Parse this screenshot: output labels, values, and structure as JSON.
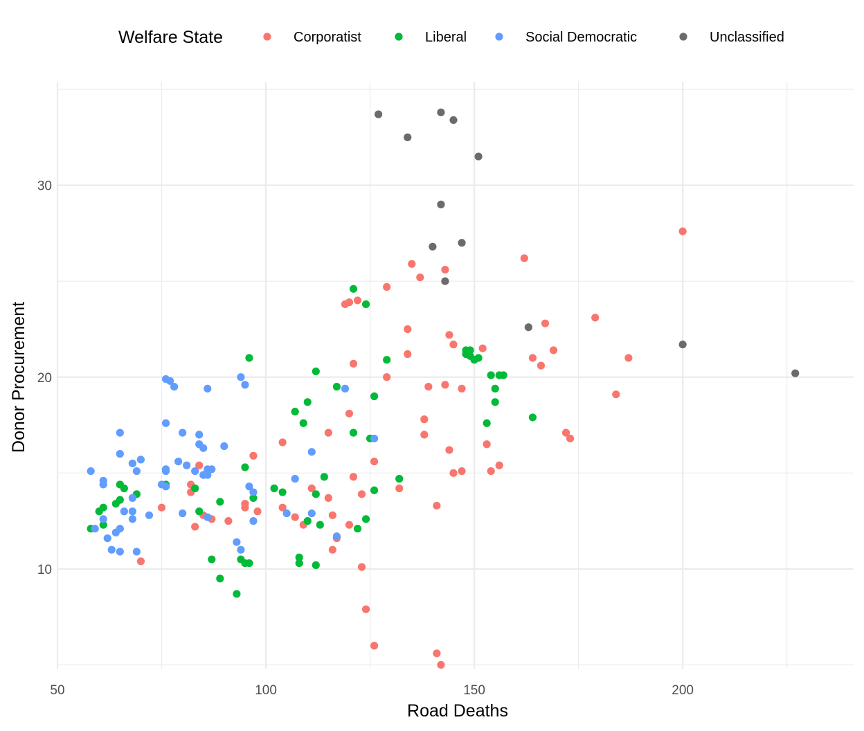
{
  "chart_data": {
    "type": "scatter",
    "title": "",
    "xlabel": "Road Deaths",
    "ylabel": "Donor Procurement",
    "xlim": [
      50,
      241
    ],
    "ylim": [
      4.8,
      35.4
    ],
    "x_ticks": [
      50,
      100,
      150,
      200
    ],
    "y_ticks": [
      10,
      20,
      30
    ],
    "grid": true,
    "legend": {
      "title": "Welfare State",
      "placement": "top"
    },
    "series": [
      {
        "name": "Corporatist",
        "color": "#F8766D",
        "points": [
          [
            200,
            27.6
          ],
          [
            162,
            26.2
          ],
          [
            135,
            25.9
          ],
          [
            143,
            25.6
          ],
          [
            137,
            25.2
          ],
          [
            129,
            24.7
          ],
          [
            122,
            24.0
          ],
          [
            120,
            23.9
          ],
          [
            119,
            23.8
          ],
          [
            179,
            23.1
          ],
          [
            167,
            22.8
          ],
          [
            134,
            22.5
          ],
          [
            144,
            22.2
          ],
          [
            145,
            21.7
          ],
          [
            152,
            21.5
          ],
          [
            169,
            21.4
          ],
          [
            134,
            21.2
          ],
          [
            164,
            21.0
          ],
          [
            187,
            21.0
          ],
          [
            121,
            20.7
          ],
          [
            166,
            20.6
          ],
          [
            129,
            20.0
          ],
          [
            143,
            19.6
          ],
          [
            139,
            19.5
          ],
          [
            147,
            19.4
          ],
          [
            184,
            19.1
          ],
          [
            120,
            18.1
          ],
          [
            138,
            17.8
          ],
          [
            115,
            17.1
          ],
          [
            172,
            17.1
          ],
          [
            138,
            17.0
          ],
          [
            173,
            16.8
          ],
          [
            104,
            16.6
          ],
          [
            153,
            16.5
          ],
          [
            144,
            16.2
          ],
          [
            97,
            15.9
          ],
          [
            126,
            15.6
          ],
          [
            156,
            15.4
          ],
          [
            84,
            15.4
          ],
          [
            145,
            15.0
          ],
          [
            147,
            15.1
          ],
          [
            154,
            15.1
          ],
          [
            121,
            14.8
          ],
          [
            82,
            14.4
          ],
          [
            111,
            14.2
          ],
          [
            132,
            14.2
          ],
          [
            82,
            14.0
          ],
          [
            123,
            13.9
          ],
          [
            115,
            13.7
          ],
          [
            95,
            13.4
          ],
          [
            141,
            13.3
          ],
          [
            75,
            13.2
          ],
          [
            95,
            13.2
          ],
          [
            104,
            13.2
          ],
          [
            98,
            13.0
          ],
          [
            85,
            12.8
          ],
          [
            116,
            12.8
          ],
          [
            107,
            12.7
          ],
          [
            87,
            12.6
          ],
          [
            91,
            12.5
          ],
          [
            120,
            12.3
          ],
          [
            109,
            12.3
          ],
          [
            83,
            12.2
          ],
          [
            117,
            11.6
          ],
          [
            116,
            11.0
          ],
          [
            70,
            10.4
          ],
          [
            123,
            10.1
          ],
          [
            124,
            7.9
          ],
          [
            126,
            6.0
          ],
          [
            141,
            5.6
          ],
          [
            142,
            5.0
          ]
        ]
      },
      {
        "name": "Liberal",
        "color": "#00BA38",
        "points": [
          [
            121,
            24.6
          ],
          [
            124,
            23.8
          ],
          [
            148,
            21.4
          ],
          [
            149,
            21.4
          ],
          [
            148,
            21.2
          ],
          [
            149,
            21.1
          ],
          [
            96,
            21.0
          ],
          [
            129,
            20.9
          ],
          [
            150,
            20.9
          ],
          [
            151,
            21.0
          ],
          [
            112,
            20.3
          ],
          [
            154,
            20.1
          ],
          [
            156,
            20.1
          ],
          [
            157,
            20.1
          ],
          [
            117,
            19.5
          ],
          [
            155,
            19.4
          ],
          [
            126,
            19.0
          ],
          [
            110,
            18.7
          ],
          [
            155,
            18.7
          ],
          [
            107,
            18.2
          ],
          [
            164,
            17.9
          ],
          [
            109,
            17.6
          ],
          [
            153,
            17.6
          ],
          [
            121,
            17.1
          ],
          [
            125,
            16.8
          ],
          [
            95,
            15.3
          ],
          [
            114,
            14.8
          ],
          [
            132,
            14.7
          ],
          [
            76,
            14.4
          ],
          [
            65,
            14.4
          ],
          [
            66,
            14.2
          ],
          [
            83,
            14.2
          ],
          [
            102,
            14.2
          ],
          [
            126,
            14.1
          ],
          [
            104,
            14.0
          ],
          [
            69,
            13.9
          ],
          [
            112,
            13.9
          ],
          [
            97,
            13.7
          ],
          [
            65,
            13.6
          ],
          [
            64,
            13.4
          ],
          [
            89,
            13.5
          ],
          [
            61,
            13.2
          ],
          [
            60,
            13.0
          ],
          [
            84,
            13.0
          ],
          [
            110,
            12.5
          ],
          [
            124,
            12.6
          ],
          [
            113,
            12.3
          ],
          [
            61,
            12.3
          ],
          [
            58,
            12.1
          ],
          [
            122,
            12.1
          ],
          [
            108,
            10.6
          ],
          [
            87,
            10.5
          ],
          [
            94,
            10.5
          ],
          [
            95,
            10.3
          ],
          [
            96,
            10.3
          ],
          [
            108,
            10.3
          ],
          [
            112,
            10.2
          ],
          [
            89,
            9.5
          ],
          [
            93,
            8.7
          ]
        ]
      },
      {
        "name": "Social Democratic",
        "color": "#619CFF",
        "points": [
          [
            76,
            19.9
          ],
          [
            77,
            19.8
          ],
          [
            78,
            19.5
          ],
          [
            94,
            20.0
          ],
          [
            95,
            19.6
          ],
          [
            86,
            19.4
          ],
          [
            119,
            19.4
          ],
          [
            76,
            17.6
          ],
          [
            65,
            17.1
          ],
          [
            80,
            17.1
          ],
          [
            84,
            17.0
          ],
          [
            126,
            16.8
          ],
          [
            84,
            16.5
          ],
          [
            85,
            16.3
          ],
          [
            90,
            16.4
          ],
          [
            111,
            16.1
          ],
          [
            65,
            16.0
          ],
          [
            70,
            15.7
          ],
          [
            68,
            15.5
          ],
          [
            79,
            15.6
          ],
          [
            81,
            15.4
          ],
          [
            58,
            15.1
          ],
          [
            76,
            15.2
          ],
          [
            69,
            15.1
          ],
          [
            76,
            15.1
          ],
          [
            83,
            15.1
          ],
          [
            86,
            15.2
          ],
          [
            87,
            15.2
          ],
          [
            85,
            14.9
          ],
          [
            86,
            14.9
          ],
          [
            61,
            14.6
          ],
          [
            61,
            14.4
          ],
          [
            75,
            14.4
          ],
          [
            76,
            14.3
          ],
          [
            96,
            14.3
          ],
          [
            97,
            14.0
          ],
          [
            107,
            14.7
          ],
          [
            68,
            13.7
          ],
          [
            66,
            13.0
          ],
          [
            68,
            13.0
          ],
          [
            72,
            12.8
          ],
          [
            80,
            12.9
          ],
          [
            105,
            12.9
          ],
          [
            111,
            12.9
          ],
          [
            61,
            12.6
          ],
          [
            68,
            12.6
          ],
          [
            86,
            12.7
          ],
          [
            97,
            12.5
          ],
          [
            59,
            12.1
          ],
          [
            65,
            12.1
          ],
          [
            64,
            11.9
          ],
          [
            62,
            11.6
          ],
          [
            117,
            11.7
          ],
          [
            93,
            11.4
          ],
          [
            63,
            11.0
          ],
          [
            65,
            10.9
          ],
          [
            69,
            10.9
          ],
          [
            94,
            11.0
          ]
        ]
      },
      {
        "name": "Unclassified",
        "color": "#6B6B6B",
        "points": [
          [
            127,
            33.7
          ],
          [
            142,
            33.8
          ],
          [
            145,
            33.4
          ],
          [
            134,
            32.5
          ],
          [
            151,
            31.5
          ],
          [
            142,
            29.0
          ],
          [
            140,
            26.8
          ],
          [
            147,
            27.0
          ],
          [
            143,
            25.0
          ],
          [
            163,
            22.6
          ],
          [
            200,
            21.7
          ],
          [
            227,
            20.2
          ]
        ]
      }
    ]
  }
}
